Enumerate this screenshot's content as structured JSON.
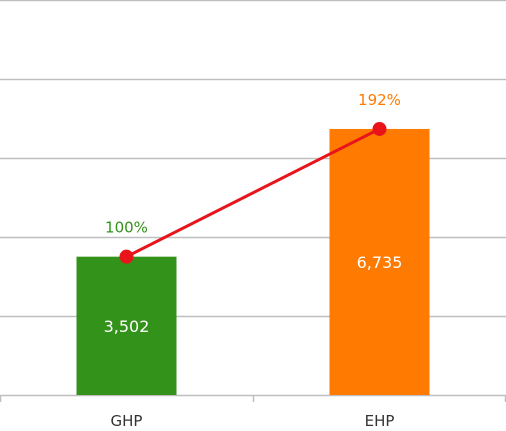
{
  "chart_data": {
    "type": "bar",
    "categories": [
      "GHP",
      "EHP"
    ],
    "values": [
      3502,
      6735
    ],
    "value_labels": [
      "3,502",
      "6,735"
    ],
    "bar_colors": [
      "#339219",
      "#ff7a00"
    ],
    "line_series": {
      "values": [
        100,
        192
      ],
      "labels": [
        "100%",
        "192%"
      ],
      "color": "#e8141a",
      "label_colors": [
        "#339219",
        "#ff7a00"
      ]
    },
    "ylim": [
      0,
      10000
    ],
    "grid": true
  }
}
